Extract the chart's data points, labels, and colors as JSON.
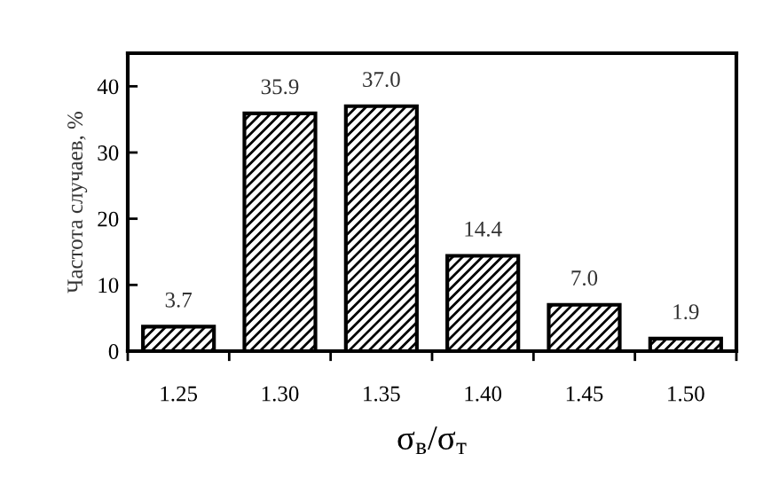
{
  "chart_data": {
    "type": "bar",
    "xlabel": "σ$_{в}$/σ$_{т}$",
    "ylabel": "Частота случаев, %",
    "categories": [
      "1.25",
      "1.30",
      "1.35",
      "1.40",
      "1.45",
      "1.50"
    ],
    "values": [
      3.7,
      35.9,
      37.0,
      14.4,
      7.0,
      1.9
    ],
    "value_labels": [
      "3.7",
      "35.9",
      "37.0",
      "14.4",
      "7.0",
      "1.9"
    ],
    "color": "#000000",
    "ylim": [
      0,
      45
    ],
    "yticks": [
      0,
      10,
      20,
      30,
      40
    ],
    "grid": false,
    "legend": false
  }
}
